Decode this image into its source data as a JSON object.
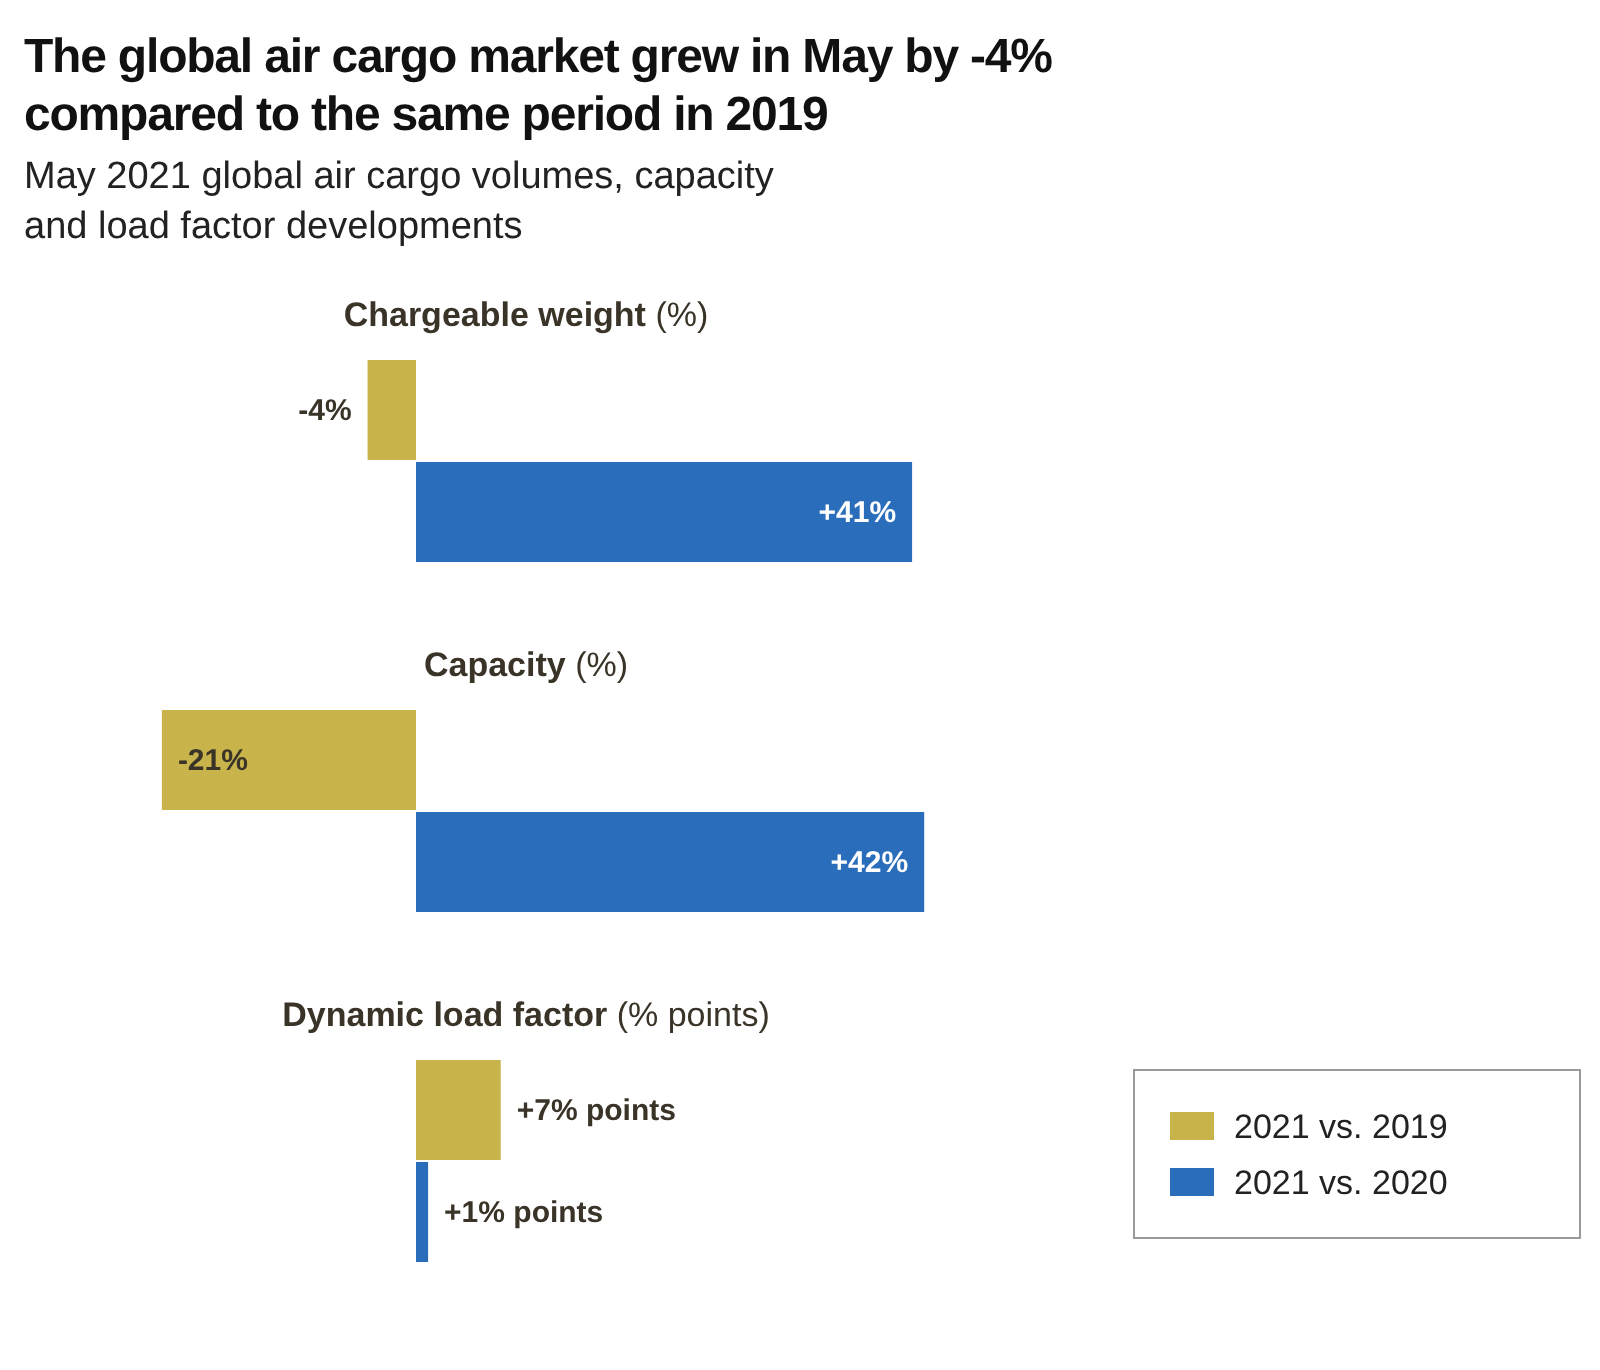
{
  "chart_data": {
    "type": "bar",
    "orientation": "horizontal",
    "title": "The global air cargo market grew in May by -4% compared to the same period in 2019",
    "subtitle": "May 2021 global air cargo volumes, capacity and load factor developments",
    "categories": [
      "Chargeable weight (%)",
      "Capacity (%)",
      "Dynamic load factor (% points)"
    ],
    "series": [
      {
        "name": "2021 vs. 2019",
        "color": "#c8b44a",
        "values": [
          -4,
          -21,
          7
        ],
        "value_labels": [
          "-4%",
          "-21%",
          "+7% points"
        ]
      },
      {
        "name": "2021 vs. 2020",
        "color": "#2a6ebb",
        "values": [
          41,
          42,
          1
        ],
        "value_labels": [
          "+41%",
          "+42%",
          "+1% points"
        ]
      }
    ],
    "legend": "bottom right"
  }
}
